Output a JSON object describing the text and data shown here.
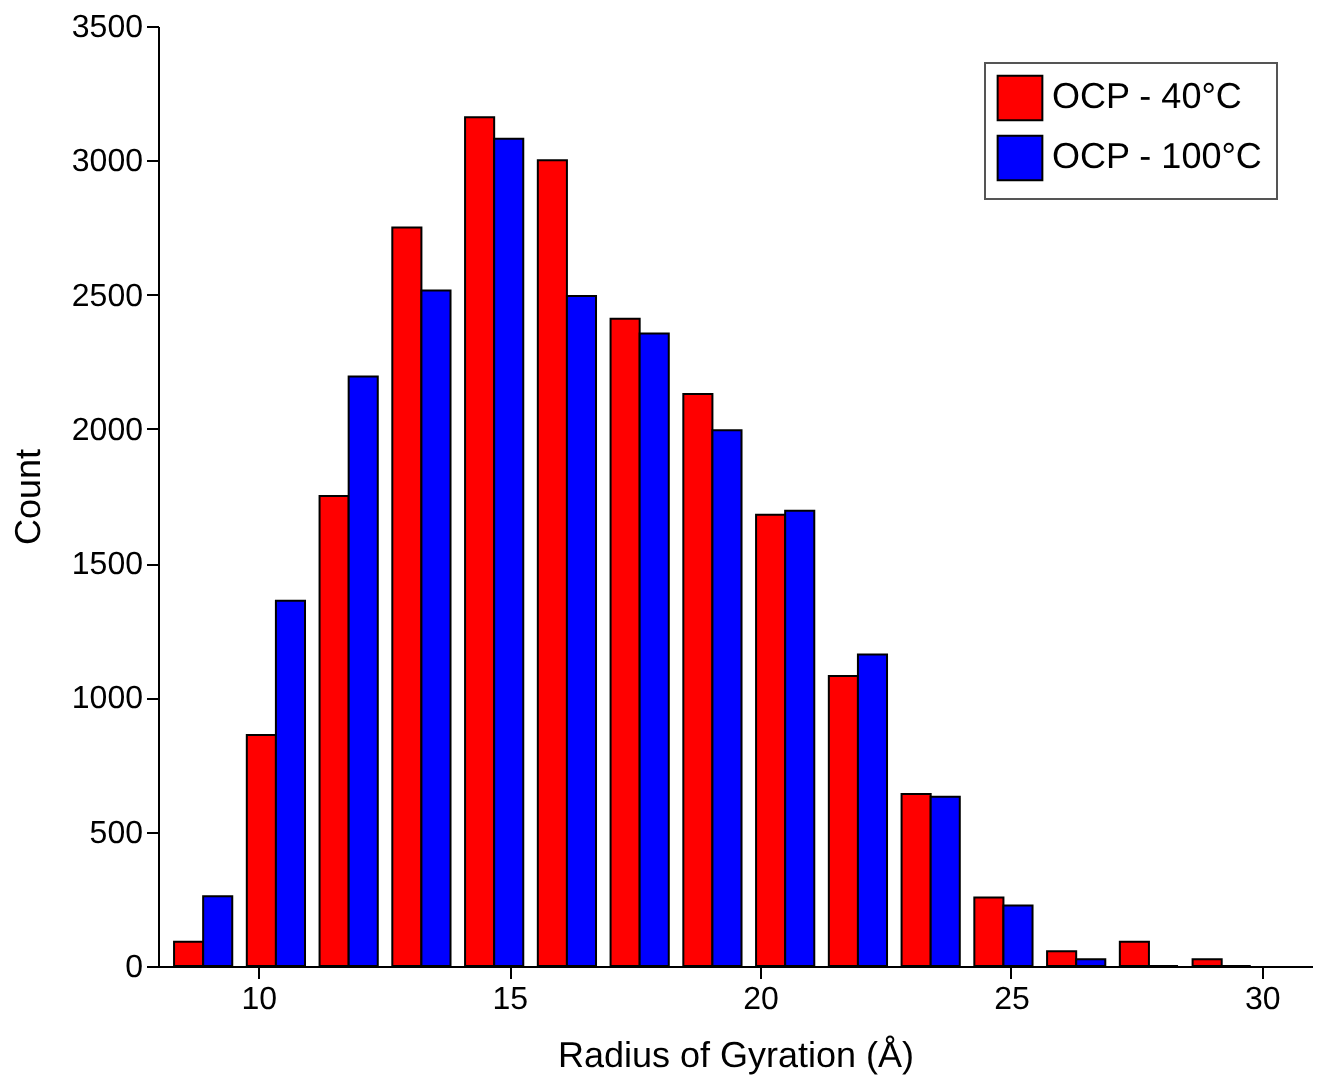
{
  "chart_data": {
    "type": "bar",
    "xlabel": "Radius of Gyration  (Å)",
    "ylabel": "Count",
    "x": [
      8.9,
      10.35,
      11.8,
      13.25,
      14.7,
      16.15,
      17.6,
      19.05,
      20.5,
      21.95,
      23.4,
      24.85,
      26.3,
      27.75,
      29.2
    ],
    "series": [
      {
        "name": "OCP - 40°C",
        "color": "#ff0000",
        "values": [
          90,
          860,
          1750,
          2750,
          3160,
          3000,
          2410,
          2130,
          1680,
          1080,
          640,
          255,
          55,
          90,
          25
        ]
      },
      {
        "name": "OCP - 100°C",
        "color": "#0000ff",
        "values": [
          260,
          1360,
          2195,
          2515,
          3080,
          2495,
          2355,
          1995,
          1695,
          1160,
          630,
          225,
          25,
          0,
          0
        ]
      }
    ],
    "xlim": [
      8,
      31
    ],
    "xticks": [
      10,
      15,
      20,
      25,
      30
    ],
    "ylim": [
      0,
      3500
    ],
    "yticks": [
      0,
      500,
      1000,
      1500,
      2000,
      2500,
      3000,
      3500
    ],
    "grid": false,
    "legend": "top right"
  }
}
